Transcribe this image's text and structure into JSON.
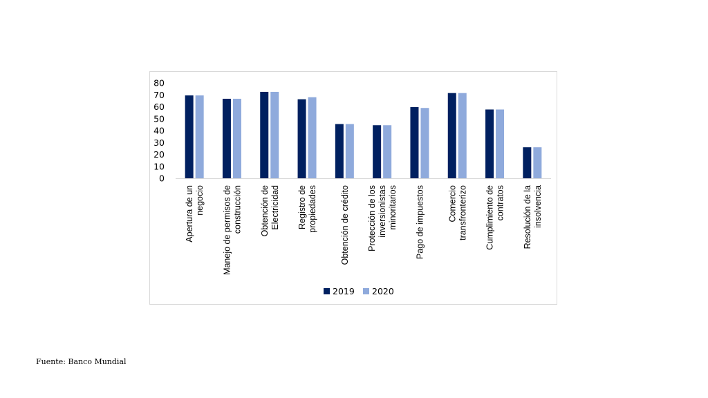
{
  "chart_data": {
    "type": "bar",
    "categories": [
      [
        "Apertura de un",
        "negocio"
      ],
      [
        "Manejo de permisos de",
        "construcción"
      ],
      [
        "Obtención de",
        "Electricidad"
      ],
      [
        "Registro de",
        "propiedades"
      ],
      [
        "Obtención de crédito"
      ],
      [
        "Protección de los",
        "inversionistas",
        "minoritarios"
      ],
      [
        "Pago de impuestos"
      ],
      [
        "Comercio",
        "transfronterizo"
      ],
      [
        "Cumplimiento de",
        "contratos"
      ],
      [
        "Resolución de la",
        "insolvencia"
      ]
    ],
    "series": [
      {
        "name": "2019",
        "color": "#002060",
        "values": [
          69.5,
          66.7,
          72.5,
          66.3,
          45.5,
          44.5,
          59.7,
          71.5,
          57.7,
          26
        ]
      },
      {
        "name": "2020",
        "color": "#8faadc",
        "values": [
          69.5,
          66.7,
          72.5,
          68,
          45.5,
          44.5,
          59,
          71.5,
          57.7,
          26
        ]
      }
    ],
    "ylim": [
      0,
      80
    ],
    "yticks": [
      0,
      10,
      20,
      30,
      40,
      50,
      60,
      70,
      80
    ],
    "grid": false,
    "legend": "bottom"
  },
  "footer": {
    "source": "Fuente: Banco Mundial"
  }
}
